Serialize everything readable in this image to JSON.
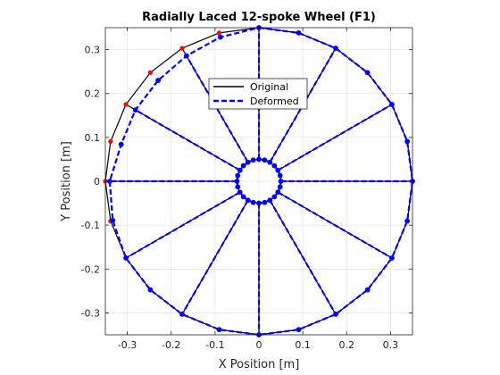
{
  "chart_data": {
    "type": "line",
    "title": "Radially Laced 12-spoke Wheel (F1)",
    "xlabel": "X Position [m]",
    "ylabel": "Y Position [m]",
    "xlim": [
      -0.35,
      0.35
    ],
    "ylim": [
      -0.35,
      0.35
    ],
    "xticks": [
      -0.3,
      -0.2,
      -0.1,
      0,
      0.1,
      0.2,
      0.3
    ],
    "yticks": [
      -0.3,
      -0.2,
      -0.1,
      0,
      0.1,
      0.2,
      0.3
    ],
    "xtick_labels": [
      "-0.3",
      "-0.2",
      "-0.1",
      "0",
      "0.1",
      "0.2",
      "0.3"
    ],
    "ytick_labels": [
      "-0.3",
      "-0.2",
      "-0.1",
      "0",
      "0.1",
      "0.2",
      "0.3"
    ],
    "grid": true,
    "legend_position": "top-center",
    "rim_radius": 0.35,
    "hub_radius": 0.05,
    "node_count": 24,
    "series": [
      {
        "name": "Original",
        "color": "#000000",
        "style": "solid",
        "marker_color": "#ff0000",
        "rim_radii": [
          0.35,
          0.35,
          0.35,
          0.35,
          0.35,
          0.35,
          0.35,
          0.35,
          0.35,
          0.35,
          0.35,
          0.35,
          0.35,
          0.35,
          0.35,
          0.35,
          0.35,
          0.35,
          0.35,
          0.35,
          0.35,
          0.35,
          0.35,
          0.35
        ]
      },
      {
        "name": "Deformed",
        "color": "#0000ff",
        "style": "dashed",
        "marker_color": "#0000ff",
        "rim_radii": [
          0.35,
          0.35,
          0.35,
          0.35,
          0.35,
          0.35,
          0.35,
          0.35,
          0.35,
          0.35,
          0.35,
          0.35,
          0.35,
          0.35,
          0.35,
          0.35,
          0.35,
          0.345,
          0.34,
          0.325,
          0.325,
          0.325,
          0.33,
          0.34
        ]
      }
    ]
  }
}
